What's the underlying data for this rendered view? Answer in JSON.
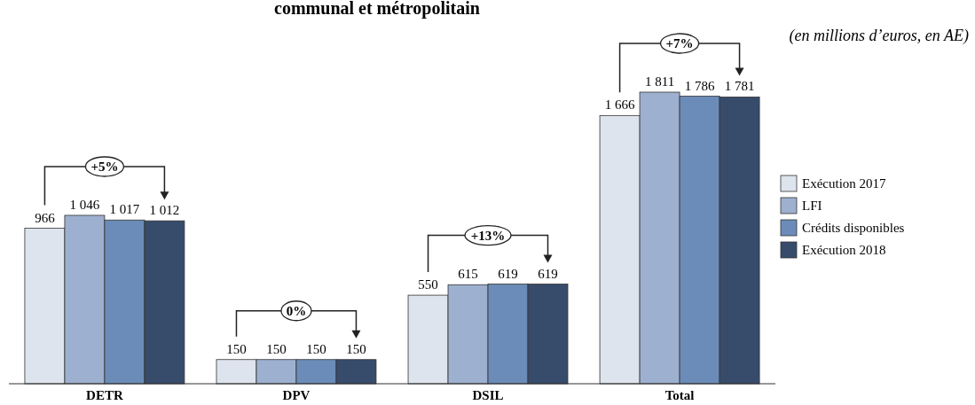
{
  "chart_data": {
    "type": "bar",
    "title": "communal et métropolitain",
    "subtitle": "(en millions d’euros, en AE)",
    "categories": [
      "DETR",
      "DPV",
      "DSIL",
      "Total"
    ],
    "series": [
      {
        "name": "Exécution 2017",
        "color": "#dee4ee",
        "values": [
          966,
          150,
          550,
          1666
        ],
        "value_labels": [
          "966",
          "150",
          "550",
          "1 666"
        ]
      },
      {
        "name": "LFI",
        "color": "#9db0cf",
        "values": [
          1046,
          150,
          615,
          1811
        ],
        "value_labels": [
          "1 046",
          "150",
          "615",
          "1 811"
        ]
      },
      {
        "name": "Crédits disponibles",
        "color": "#6b8cb8",
        "values": [
          1017,
          150,
          619,
          1786
        ],
        "value_labels": [
          "1 017",
          "150",
          "619",
          "1 786"
        ]
      },
      {
        "name": "Exécution 2018",
        "color": "#374b6b",
        "values": [
          1012,
          150,
          619,
          1781
        ],
        "value_labels": [
          "1 012",
          "150",
          "619",
          "1 781"
        ]
      }
    ],
    "annotations": [
      "+5%",
      "0%",
      "+13%",
      "+7%"
    ],
    "tick_labels": "x",
    "legend": "right",
    "grid": false
  }
}
